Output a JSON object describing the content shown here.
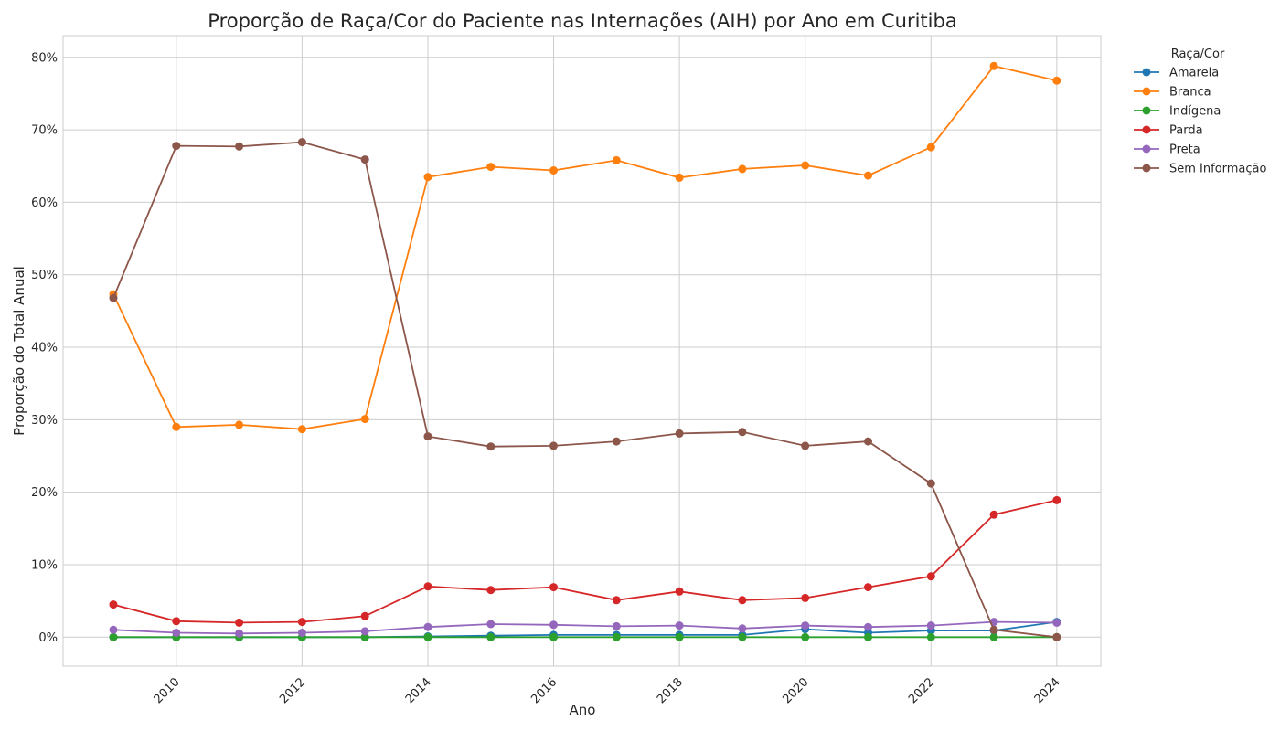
{
  "chart_data": {
    "type": "line",
    "title": "Proporção de Raça/Cor do Paciente nas Internações (AIH) por Ano em Curitiba",
    "xlabel": "Ano",
    "ylabel": "Proporção do Total Anual",
    "x": [
      2009,
      2010,
      2011,
      2012,
      2013,
      2014,
      2015,
      2016,
      2017,
      2018,
      2019,
      2020,
      2021,
      2022,
      2023,
      2024
    ],
    "xlim": [
      2008.2,
      2024.7
    ],
    "ylim": [
      -4,
      83
    ],
    "x_ticks": [
      "2010",
      "2012",
      "2014",
      "2016",
      "2018",
      "2020",
      "2022",
      "2024"
    ],
    "y_ticks": [
      "0%",
      "10%",
      "20%",
      "30%",
      "40%",
      "50%",
      "60%",
      "70%",
      "80%"
    ],
    "grid": true,
    "legend": {
      "title": "Raça/Cor",
      "placement": "outside-top-right"
    },
    "series": [
      {
        "name": "Amarela",
        "color": "#1f77b4",
        "values": [
          0.0,
          0.0,
          0.0,
          0.0,
          0.0,
          0.1,
          0.2,
          0.3,
          0.3,
          0.3,
          0.3,
          1.1,
          0.6,
          0.9,
          0.9,
          2.1
        ]
      },
      {
        "name": "Branca",
        "color": "#ff7f0e",
        "values": [
          47.3,
          29.0,
          29.3,
          28.7,
          30.1,
          63.5,
          64.9,
          64.4,
          65.8,
          63.4,
          64.6,
          65.1,
          63.7,
          67.6,
          78.8,
          76.8
        ]
      },
      {
        "name": "Indígena",
        "color": "#2ca02c",
        "values": [
          0.0,
          0.0,
          0.0,
          0.0,
          0.0,
          0.0,
          0.0,
          0.0,
          0.0,
          0.0,
          0.0,
          0.0,
          0.0,
          0.0,
          0.0,
          0.0
        ]
      },
      {
        "name": "Parda",
        "color": "#d62728",
        "values": [
          4.5,
          2.2,
          2.0,
          2.1,
          2.9,
          7.0,
          6.5,
          6.9,
          5.1,
          6.3,
          5.1,
          5.4,
          6.9,
          8.4,
          16.9,
          18.9
        ]
      },
      {
        "name": "Preta",
        "color": "#9467bd",
        "values": [
          1.0,
          0.6,
          0.5,
          0.6,
          0.8,
          1.4,
          1.8,
          1.7,
          1.5,
          1.6,
          1.2,
          1.6,
          1.4,
          1.6,
          2.1,
          2.0
        ]
      },
      {
        "name": "Sem Informação",
        "color": "#8c564b",
        "values": [
          46.8,
          67.8,
          67.7,
          68.3,
          65.9,
          27.7,
          26.3,
          26.4,
          27.0,
          28.1,
          28.3,
          26.4,
          27.0,
          21.2,
          1.0,
          0.0
        ]
      }
    ]
  }
}
